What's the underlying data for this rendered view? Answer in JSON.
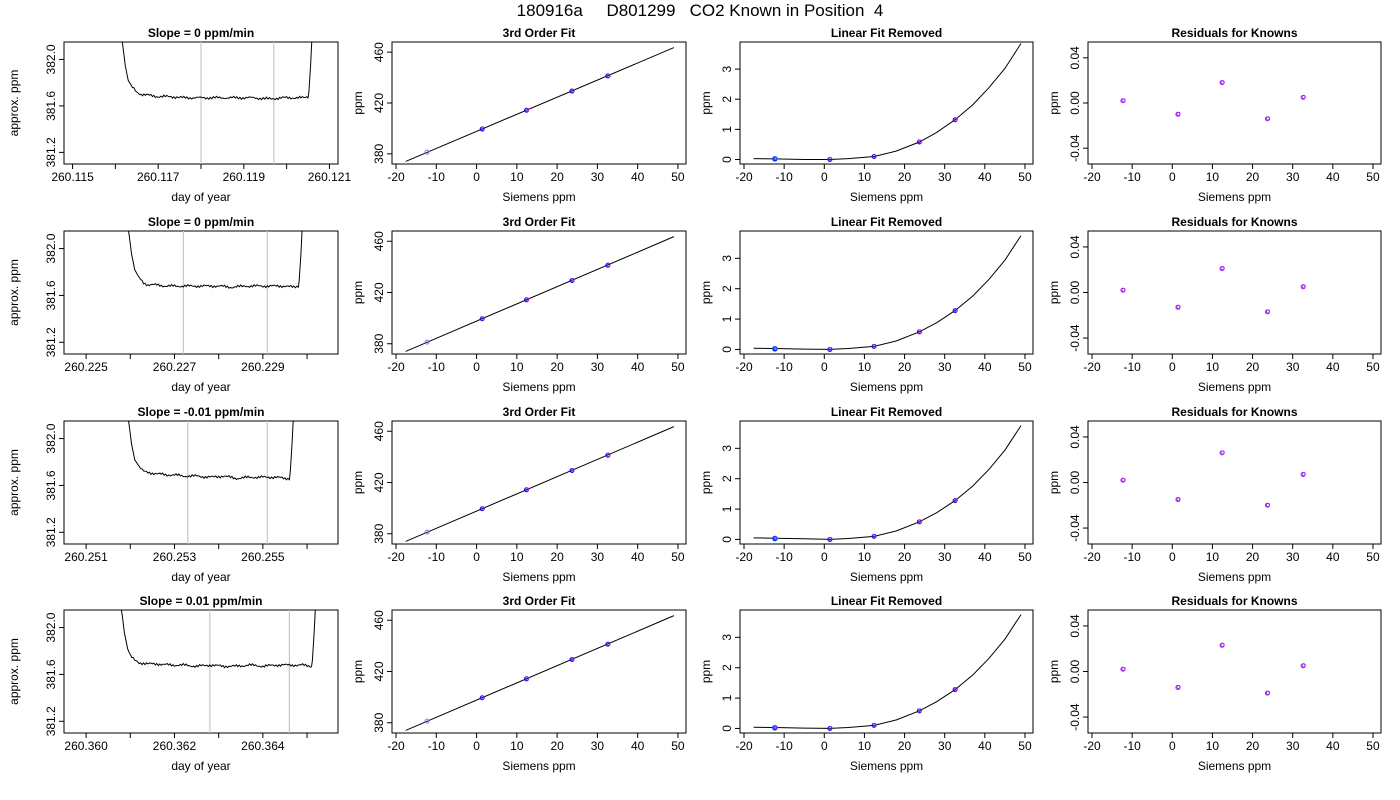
{
  "page_title": "180916a     D801299   CO2 Known in Position  4",
  "colors": {
    "axis": "#000000",
    "line": "#000000",
    "marker_blue": "#0000ff",
    "marker_purple": "#a020f0",
    "marker_cyan": "#00bfff",
    "marker_violet": "#9966ff",
    "guide_line": "#c8c8c8"
  },
  "chart_data": [
    {
      "panel": "row1-col1",
      "type": "line",
      "title": "Slope =  0  ppm/min",
      "xlabel": "day of year",
      "ylabel": "approx. ppm",
      "xlim": [
        260.1148,
        260.1212
      ],
      "ylim": [
        381.1,
        382.15
      ],
      "xticks": [
        "260.115",
        "260.117",
        "260.119",
        "260.121"
      ],
      "xtick_values": [
        260.115,
        260.117,
        260.119,
        260.121
      ],
      "xminor": [
        260.116,
        260.118,
        260.12
      ],
      "yticks": [
        "381.2",
        "381.6",
        "382.0"
      ],
      "ytick_values": [
        381.2,
        381.6,
        382.0
      ],
      "guides": [
        260.118,
        260.1197
      ],
      "x": [
        260.11612,
        260.11618,
        260.11623,
        260.1163,
        260.1164,
        260.1165,
        260.1166,
        260.1168,
        260.117,
        260.1173,
        260.1176,
        260.118,
        260.1184,
        260.1188,
        260.1192,
        260.1196,
        260.1199,
        260.1202,
        260.1204,
        260.1205,
        260.12052,
        260.12056,
        260.1206
      ],
      "y": [
        382.25,
        382.1,
        381.95,
        381.82,
        381.76,
        381.72,
        381.7,
        381.69,
        381.68,
        381.68,
        381.67,
        381.67,
        381.67,
        381.67,
        381.67,
        381.66,
        381.67,
        381.67,
        381.67,
        381.68,
        381.72,
        381.95,
        382.25
      ]
    },
    {
      "panel": "row1-col2",
      "type": "scatter",
      "title": "3rd Order Fit",
      "xlabel": "Siemens ppm",
      "ylabel": "ppm",
      "xlim": [
        -21,
        52
      ],
      "ylim": [
        372,
        468
      ],
      "xticks": [
        "-20",
        "-10",
        "0",
        "10",
        "20",
        "30",
        "40",
        "50"
      ],
      "xtick_values": [
        -20,
        -10,
        0,
        10,
        20,
        30,
        40,
        50
      ],
      "yticks": [
        "380",
        "420",
        "460"
      ],
      "ytick_values": [
        380,
        420,
        460
      ],
      "fit": {
        "x": [
          -17.6,
          49
        ],
        "y": [
          374,
          463.6
        ]
      },
      "x": [
        -12.3,
        1.4,
        12.4,
        23.7,
        32.6
      ],
      "y": [
        381.3,
        399.5,
        414.3,
        429.4,
        441.3
      ]
    },
    {
      "panel": "row1-col3",
      "type": "scatter",
      "title": "Linear Fit Removed",
      "xlabel": "Siemens ppm",
      "ylabel": "ppm",
      "xlim": [
        -21,
        52
      ],
      "ylim": [
        -0.15,
        3.9
      ],
      "xticks": [
        "-20",
        "-10",
        "0",
        "10",
        "20",
        "30",
        "40",
        "50"
      ],
      "xtick_values": [
        -20,
        -10,
        0,
        10,
        20,
        30,
        40,
        50
      ],
      "yticks": [
        "0",
        "1",
        "2",
        "3"
      ],
      "ytick_values": [
        0,
        1,
        2,
        3
      ],
      "x": [
        -12.3,
        1.4,
        12.4,
        23.7,
        32.6
      ],
      "y": [
        0.02,
        0.0,
        0.1,
        0.58,
        1.32
      ],
      "curve": {
        "x": [
          -17.6,
          -12.3,
          -5,
          1.4,
          6,
          12.4,
          18,
          23.7,
          28,
          32.6,
          37,
          41,
          45,
          49
        ],
        "y": [
          0.03,
          0.02,
          0.0,
          0.0,
          0.03,
          0.1,
          0.28,
          0.58,
          0.9,
          1.32,
          1.82,
          2.38,
          3.02,
          3.85
        ]
      }
    },
    {
      "panel": "row1-col4",
      "type": "scatter",
      "title": "Residuals for Knowns",
      "xlabel": "Siemens ppm",
      "ylabel": "ppm",
      "xlim": [
        -21,
        52
      ],
      "ylim": [
        -0.054,
        0.054
      ],
      "xticks": [
        "-20",
        "-10",
        "0",
        "10",
        "20",
        "30",
        "40",
        "50"
      ],
      "xtick_values": [
        -20,
        -10,
        0,
        10,
        20,
        30,
        40,
        50
      ],
      "yticks": [
        "-0.04",
        "0.00",
        "0.04"
      ],
      "ytick_values": [
        -0.04,
        0.0,
        0.04
      ],
      "x": [
        -12.3,
        1.4,
        12.4,
        23.7,
        32.6
      ],
      "y": [
        0.002,
        -0.01,
        0.018,
        -0.014,
        0.005
      ]
    },
    {
      "panel": "row2-col1",
      "type": "line",
      "title": "Slope =  0  ppm/min",
      "xlabel": "day of year",
      "ylabel": "approx. ppm",
      "xlim": [
        260.2245,
        260.2307
      ],
      "ylim": [
        381.1,
        382.15
      ],
      "xticks": [
        "260.225",
        "260.227",
        "260.229"
      ],
      "xtick_values": [
        260.225,
        260.227,
        260.229
      ],
      "xminor": [
        260.226,
        260.228,
        260.23
      ],
      "yticks": [
        "381.2",
        "381.6",
        "382.0"
      ],
      "ytick_values": [
        381.2,
        381.6,
        382.0
      ],
      "guides": [
        260.2272,
        260.2291
      ],
      "x": [
        260.22592,
        260.22598,
        260.22603,
        260.2261,
        260.2262,
        260.2263,
        260.2264,
        260.2266,
        260.2268,
        260.2271,
        260.2274,
        260.2277,
        260.228,
        260.2283,
        260.2286,
        260.2289,
        260.2292,
        260.2295,
        260.2297,
        260.2298,
        260.22982,
        260.22986,
        260.2299
      ],
      "y": [
        382.25,
        382.1,
        381.95,
        381.82,
        381.75,
        381.71,
        381.69,
        381.69,
        381.68,
        381.68,
        381.68,
        381.68,
        381.68,
        381.67,
        381.68,
        381.68,
        381.68,
        381.68,
        381.67,
        381.68,
        381.72,
        381.95,
        382.25
      ]
    },
    {
      "panel": "row2-col2",
      "type": "scatter",
      "title": "3rd Order Fit",
      "xlabel": "Siemens ppm",
      "ylabel": "ppm",
      "xlim": [
        -21,
        52
      ],
      "ylim": [
        372,
        468
      ],
      "xticks": [
        "-20",
        "-10",
        "0",
        "10",
        "20",
        "30",
        "40",
        "50"
      ],
      "xtick_values": [
        -20,
        -10,
        0,
        10,
        20,
        30,
        40,
        50
      ],
      "yticks": [
        "380",
        "420",
        "460"
      ],
      "ytick_values": [
        380,
        420,
        460
      ],
      "fit": {
        "x": [
          -17.6,
          49
        ],
        "y": [
          374,
          463.6
        ]
      },
      "x": [
        -12.3,
        1.4,
        12.4,
        23.7,
        32.6
      ],
      "y": [
        381.3,
        399.5,
        414.3,
        429.4,
        441.3
      ]
    },
    {
      "panel": "row2-col3",
      "type": "scatter",
      "title": "Linear Fit Removed",
      "xlabel": "Siemens ppm",
      "ylabel": "ppm",
      "xlim": [
        -21,
        52
      ],
      "ylim": [
        -0.15,
        3.9
      ],
      "xticks": [
        "-20",
        "-10",
        "0",
        "10",
        "20",
        "30",
        "40",
        "50"
      ],
      "xtick_values": [
        -20,
        -10,
        0,
        10,
        20,
        30,
        40,
        50
      ],
      "yticks": [
        "0",
        "1",
        "2",
        "3"
      ],
      "ytick_values": [
        0,
        1,
        2,
        3
      ],
      "x": [
        -12.3,
        1.4,
        12.4,
        23.7,
        32.6
      ],
      "y": [
        0.02,
        0.0,
        0.1,
        0.58,
        1.28
      ],
      "curve": {
        "x": [
          -17.6,
          -12.3,
          -5,
          1.4,
          6,
          12.4,
          18,
          23.7,
          28,
          32.6,
          37,
          41,
          45,
          49
        ],
        "y": [
          0.04,
          0.03,
          0.01,
          0.0,
          0.03,
          0.1,
          0.28,
          0.58,
          0.88,
          1.28,
          1.76,
          2.3,
          2.94,
          3.75
        ]
      }
    },
    {
      "panel": "row2-col4",
      "type": "scatter",
      "title": "Residuals for Knowns",
      "xlabel": "Siemens ppm",
      "ylabel": "ppm",
      "xlim": [
        -21,
        52
      ],
      "ylim": [
        -0.054,
        0.054
      ],
      "xticks": [
        "-20",
        "-10",
        "0",
        "10",
        "20",
        "30",
        "40",
        "50"
      ],
      "xtick_values": [
        -20,
        -10,
        0,
        10,
        20,
        30,
        40,
        50
      ],
      "yticks": [
        "-0.04",
        "0.00",
        "0.04"
      ],
      "ytick_values": [
        -0.04,
        0.0,
        0.04
      ],
      "x": [
        -12.3,
        1.4,
        12.4,
        23.7,
        32.6
      ],
      "y": [
        0.002,
        -0.013,
        0.021,
        -0.017,
        0.005
      ]
    },
    {
      "panel": "row3-col1",
      "type": "line",
      "title": "Slope =  -0.01  ppm/min",
      "xlabel": "day of year",
      "ylabel": "approx. ppm",
      "xlim": [
        260.2505,
        260.2567
      ],
      "ylim": [
        381.1,
        382.15
      ],
      "xticks": [
        "260.251",
        "260.253",
        "260.255"
      ],
      "xtick_values": [
        260.251,
        260.253,
        260.255
      ],
      "xminor": [
        260.252,
        260.254,
        260.256
      ],
      "yticks": [
        "381.2",
        "381.6",
        "382.0"
      ],
      "ytick_values": [
        381.2,
        381.6,
        382.0
      ],
      "guides": [
        260.2533,
        260.2551
      ],
      "x": [
        260.25192,
        260.25198,
        260.25203,
        260.2521,
        260.2522,
        260.2523,
        260.2524,
        260.2526,
        260.2528,
        260.253,
        260.2532,
        260.2535,
        260.2538,
        260.2541,
        260.2544,
        260.2547,
        260.255,
        260.2553,
        260.2555,
        260.2556,
        260.25562,
        260.25566,
        260.2557
      ],
      "y": [
        382.25,
        382.1,
        381.95,
        381.82,
        381.76,
        381.72,
        381.71,
        381.7,
        381.69,
        381.69,
        381.68,
        381.68,
        381.67,
        381.68,
        381.66,
        381.67,
        381.67,
        381.67,
        381.66,
        381.66,
        381.72,
        381.95,
        382.25
      ]
    },
    {
      "panel": "row3-col2",
      "type": "scatter",
      "title": "3rd Order Fit",
      "xlabel": "Siemens ppm",
      "ylabel": "ppm",
      "xlim": [
        -21,
        52
      ],
      "ylim": [
        372,
        468
      ],
      "xticks": [
        "-20",
        "-10",
        "0",
        "10",
        "20",
        "30",
        "40",
        "50"
      ],
      "xtick_values": [
        -20,
        -10,
        0,
        10,
        20,
        30,
        40,
        50
      ],
      "yticks": [
        "380",
        "420",
        "460"
      ],
      "ytick_values": [
        380,
        420,
        460
      ],
      "fit": {
        "x": [
          -17.6,
          49
        ],
        "y": [
          374,
          463.6
        ]
      },
      "x": [
        -12.3,
        1.4,
        12.4,
        23.7,
        32.6
      ],
      "y": [
        381.3,
        399.5,
        414.3,
        429.4,
        441.3
      ]
    },
    {
      "panel": "row3-col3",
      "type": "scatter",
      "title": "Linear Fit Removed",
      "xlabel": "Siemens ppm",
      "ylabel": "ppm",
      "xlim": [
        -21,
        52
      ],
      "ylim": [
        -0.15,
        3.9
      ],
      "xticks": [
        "-20",
        "-10",
        "0",
        "10",
        "20",
        "30",
        "40",
        "50"
      ],
      "xtick_values": [
        -20,
        -10,
        0,
        10,
        20,
        30,
        40,
        50
      ],
      "yticks": [
        "0",
        "1",
        "2",
        "3"
      ],
      "ytick_values": [
        0,
        1,
        2,
        3
      ],
      "x": [
        -12.3,
        1.4,
        12.4,
        23.7,
        32.6
      ],
      "y": [
        0.03,
        0.0,
        0.1,
        0.58,
        1.28
      ],
      "curve": {
        "x": [
          -17.6,
          -12.3,
          -5,
          1.4,
          6,
          12.4,
          18,
          23.7,
          28,
          32.6,
          37,
          41,
          45,
          49
        ],
        "y": [
          0.05,
          0.04,
          0.02,
          0.0,
          0.03,
          0.1,
          0.28,
          0.58,
          0.88,
          1.28,
          1.76,
          2.3,
          2.94,
          3.75
        ]
      }
    },
    {
      "panel": "row3-col4",
      "type": "scatter",
      "title": "Residuals for Knowns",
      "xlabel": "Siemens ppm",
      "ylabel": "ppm",
      "xlim": [
        -21,
        52
      ],
      "ylim": [
        -0.054,
        0.054
      ],
      "xticks": [
        "-20",
        "-10",
        "0",
        "10",
        "20",
        "30",
        "40",
        "50"
      ],
      "xtick_values": [
        -20,
        -10,
        0,
        10,
        20,
        30,
        40,
        50
      ],
      "yticks": [
        "-0.04",
        "0.00",
        "0.04"
      ],
      "ytick_values": [
        -0.04,
        0.0,
        0.04
      ],
      "x": [
        -12.3,
        1.4,
        12.4,
        23.7,
        32.6
      ],
      "y": [
        0.002,
        -0.015,
        0.026,
        -0.02,
        0.007
      ]
    },
    {
      "panel": "row4-col1",
      "type": "line",
      "title": "Slope =  0.01  ppm/min",
      "xlabel": "day of year",
      "ylabel": "approx. ppm",
      "xlim": [
        260.3595,
        260.3657
      ],
      "ylim": [
        381.1,
        382.15
      ],
      "xticks": [
        "260.360",
        "260.362",
        "260.364"
      ],
      "xtick_values": [
        260.36,
        260.362,
        260.364
      ],
      "xminor": [
        260.361,
        260.363,
        260.365
      ],
      "yticks": [
        "381.2",
        "381.6",
        "382.0"
      ],
      "ytick_values": [
        381.2,
        381.6,
        382.0
      ],
      "guides": [
        260.3628,
        260.3646
      ],
      "x": [
        260.36076,
        260.36082,
        260.36087,
        260.36094,
        260.361,
        260.3611,
        260.3612,
        260.3614,
        260.3616,
        260.3619,
        260.3622,
        260.3625,
        260.3628,
        260.3631,
        260.3634,
        260.3637,
        260.364,
        260.3643,
        260.3646,
        260.3649,
        260.3651,
        260.36512,
        260.36516,
        260.3652
      ],
      "y": [
        382.25,
        382.1,
        381.95,
        381.82,
        381.76,
        381.72,
        381.7,
        381.69,
        381.69,
        381.68,
        381.68,
        381.67,
        381.68,
        381.67,
        381.67,
        381.68,
        381.67,
        381.68,
        381.68,
        381.68,
        381.67,
        381.72,
        381.95,
        382.25
      ]
    },
    {
      "panel": "row4-col2",
      "type": "scatter",
      "title": "3rd Order Fit",
      "xlabel": "Siemens ppm",
      "ylabel": "ppm",
      "xlim": [
        -21,
        52
      ],
      "ylim": [
        372,
        468
      ],
      "xticks": [
        "-20",
        "-10",
        "0",
        "10",
        "20",
        "30",
        "40",
        "50"
      ],
      "xtick_values": [
        -20,
        -10,
        0,
        10,
        20,
        30,
        40,
        50
      ],
      "yticks": [
        "380",
        "420",
        "460"
      ],
      "ytick_values": [
        380,
        420,
        460
      ],
      "fit": {
        "x": [
          -17.6,
          49
        ],
        "y": [
          374,
          463.6
        ]
      },
      "x": [
        -12.3,
        1.4,
        12.4,
        23.7,
        32.6
      ],
      "y": [
        381.3,
        399.5,
        414.3,
        429.4,
        441.3
      ]
    },
    {
      "panel": "row4-col3",
      "type": "scatter",
      "title": "Linear Fit Removed",
      "xlabel": "Siemens ppm",
      "ylabel": "ppm",
      "xlim": [
        -21,
        52
      ],
      "ylim": [
        -0.15,
        3.9
      ],
      "xticks": [
        "-20",
        "-10",
        "0",
        "10",
        "20",
        "30",
        "40",
        "50"
      ],
      "xtick_values": [
        -20,
        -10,
        0,
        10,
        20,
        30,
        40,
        50
      ],
      "yticks": [
        "0",
        "1",
        "2",
        "3"
      ],
      "ytick_values": [
        0,
        1,
        2,
        3
      ],
      "x": [
        -12.3,
        1.4,
        12.4,
        23.7,
        32.6
      ],
      "y": [
        0.02,
        0.0,
        0.1,
        0.58,
        1.28
      ],
      "curve": {
        "x": [
          -17.6,
          -12.3,
          -5,
          1.4,
          6,
          12.4,
          18,
          23.7,
          28,
          32.6,
          37,
          41,
          45,
          49
        ],
        "y": [
          0.04,
          0.03,
          0.01,
          0.0,
          0.03,
          0.1,
          0.28,
          0.58,
          0.88,
          1.28,
          1.76,
          2.3,
          2.94,
          3.75
        ]
      }
    },
    {
      "panel": "row4-col4",
      "type": "scatter",
      "title": "Residuals for Knowns",
      "xlabel": "Siemens ppm",
      "ylabel": "ppm",
      "xlim": [
        -21,
        52
      ],
      "ylim": [
        -0.054,
        0.054
      ],
      "xticks": [
        "-20",
        "-10",
        "0",
        "10",
        "20",
        "30",
        "40",
        "50"
      ],
      "xtick_values": [
        -20,
        -10,
        0,
        10,
        20,
        30,
        40,
        50
      ],
      "yticks": [
        "-0.04",
        "0.00",
        "0.04"
      ],
      "ytick_values": [
        -0.04,
        0.0,
        0.04
      ],
      "x": [
        -12.3,
        1.4,
        12.4,
        23.7,
        32.6
      ],
      "y": [
        0.002,
        -0.014,
        0.023,
        -0.019,
        0.005
      ]
    }
  ]
}
